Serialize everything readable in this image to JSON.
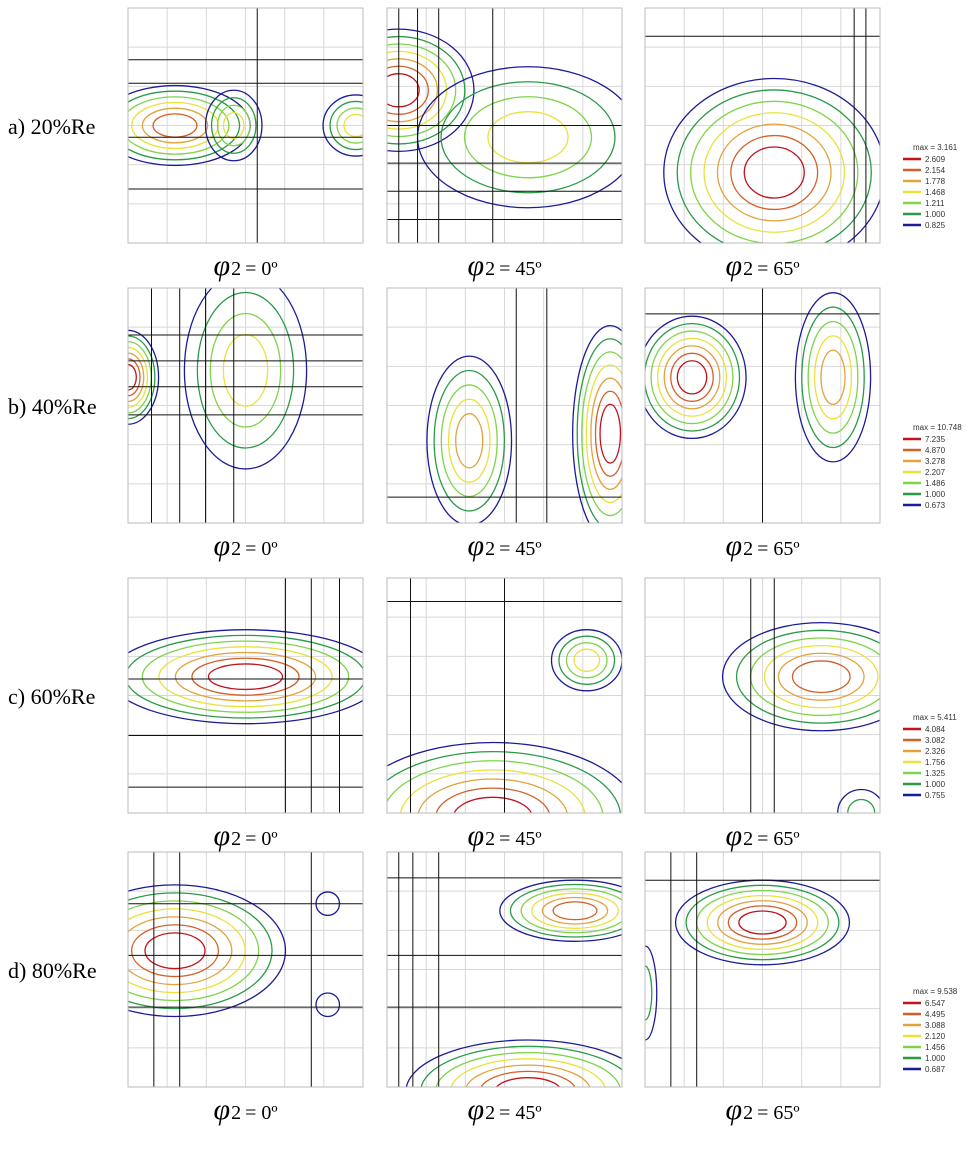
{
  "level_colors": [
    "#c0141c",
    "#d2602a",
    "#e3a23c",
    "#e8e23c",
    "#7fd44a",
    "#2a9a48",
    "#1c1c96"
  ],
  "rows": [
    {
      "label": "a) 20%Re",
      "captions": [
        {
          "symbol": "φ",
          "sub": "2",
          "text": "= 0º"
        },
        {
          "symbol": "φ",
          "sub": "2",
          "text": "= 45º"
        },
        {
          "symbol": "φ",
          "sub": "2",
          "text": "= 65º"
        }
      ],
      "legend": {
        "max": "max = 3.161",
        "levels": [
          "2.609",
          "2.154",
          "1.778",
          "1.468",
          "1.211",
          "1.000",
          "0.825"
        ]
      }
    },
    {
      "label": "b) 40%Re",
      "captions": [
        {
          "symbol": "φ",
          "sub": "2",
          "text": "= 0º"
        },
        {
          "symbol": "φ",
          "sub": "2",
          "text": "= 45º"
        },
        {
          "symbol": "φ",
          "sub": "2",
          "text": "= 65º"
        }
      ],
      "legend": {
        "max": "max = 10.748",
        "levels": [
          "7.235",
          "4.870",
          "3.278",
          "2.207",
          "1.486",
          "1.000",
          "0.673"
        ]
      }
    },
    {
      "label": "c) 60%Re",
      "captions": [
        {
          "symbol": "φ",
          "sub": "2",
          "text": "= 0º"
        },
        {
          "symbol": "φ",
          "sub": "2",
          "text": "= 45º"
        },
        {
          "symbol": "φ",
          "sub": "2",
          "text": "= 65º"
        }
      ],
      "legend": {
        "max": "max = 5.411",
        "levels": [
          "4.084",
          "3.082",
          "2.326",
          "1.756",
          "1.325",
          "1.000",
          "0.755"
        ]
      }
    },
    {
      "label": "d) 80%Re",
      "captions": [
        {
          "symbol": "φ",
          "sub": "2",
          "text": "= 0º"
        },
        {
          "symbol": "φ",
          "sub": "2",
          "text": "= 45º"
        },
        {
          "symbol": "φ",
          "sub": "2",
          "text": "= 65º"
        }
      ],
      "legend": {
        "max": "max = 9.538",
        "levels": [
          "6.547",
          "4.495",
          "3.088",
          "2.120",
          "1.456",
          "1.000",
          "0.687"
        ]
      }
    }
  ]
}
